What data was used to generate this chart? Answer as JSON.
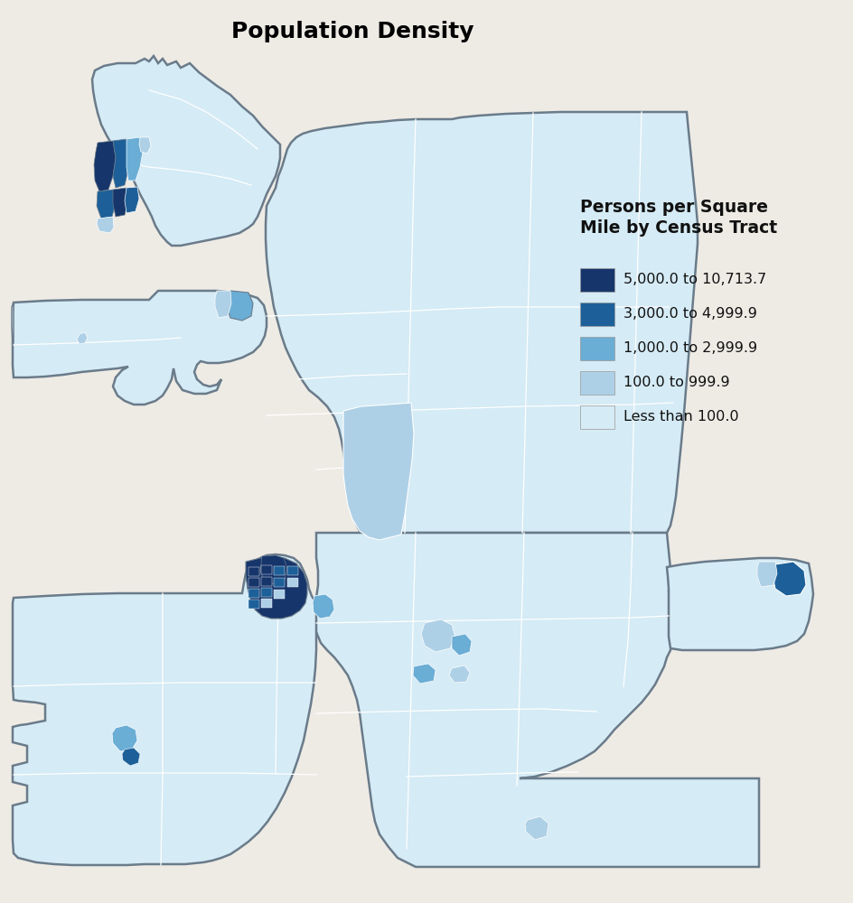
{
  "title": "Population Density",
  "title_fontsize": 18,
  "title_fontweight": "bold",
  "background_color": "#eeebe5",
  "legend_title": "Persons per Square\nMile by Census Tract",
  "legend_labels": [
    "5,000.0 to 10,713.7",
    "3,000.0 to 4,999.9",
    "1,000.0 to 2,999.9",
    "100.0 to 999.9",
    "Less than 100.0"
  ],
  "legend_colors": [
    "#16356b",
    "#1d6099",
    "#6aadd5",
    "#aed0e6",
    "#d5ebf5"
  ],
  "map_outline_color": "#6a7b8a",
  "internal_line_color": "#ffffff",
  "c_light": "#d5ebf5",
  "c_medium": "#aed0e6",
  "c_blue": "#6aadd5",
  "c_dark": "#1d6099",
  "c_darkest": "#16356b"
}
